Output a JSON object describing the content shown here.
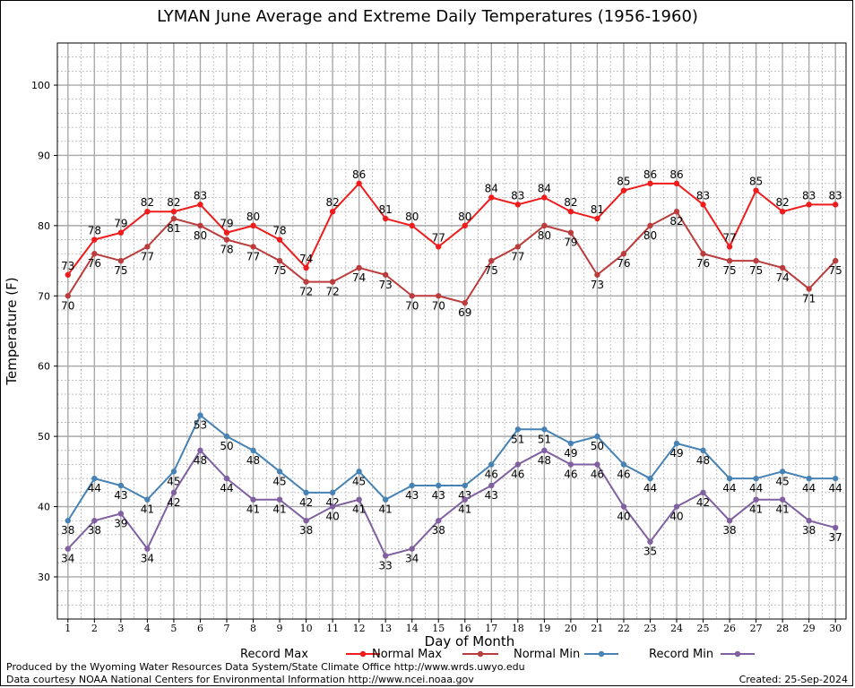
{
  "chart_data": {
    "type": "line",
    "title": "LYMAN June Average and Extreme Daily Temperatures (1956-1960)",
    "xlabel": "Day of Month",
    "ylabel": "Temperature (F)",
    "xlim": [
      0.6,
      30.4
    ],
    "ylim": [
      24,
      106
    ],
    "x": [
      1,
      2,
      3,
      4,
      5,
      6,
      7,
      8,
      9,
      10,
      11,
      12,
      13,
      14,
      15,
      16,
      17,
      18,
      19,
      20,
      21,
      22,
      23,
      24,
      25,
      26,
      27,
      28,
      29,
      30
    ],
    "y_ticks": [
      30,
      40,
      50,
      60,
      70,
      80,
      90,
      100
    ],
    "grid": true,
    "legend_position": "bottom",
    "series": [
      {
        "name": "Record Max",
        "color": "#ee1c1c",
        "values": [
          73,
          78,
          79,
          82,
          82,
          83,
          79,
          80,
          78,
          74,
          82,
          86,
          81,
          80,
          77,
          80,
          84,
          83,
          84,
          82,
          81,
          85,
          86,
          86,
          83,
          77,
          85,
          82,
          83,
          83
        ]
      },
      {
        "name": "Normal Max",
        "color": "#bb3c3c",
        "values": [
          70,
          76,
          75,
          77,
          81,
          80,
          78,
          77,
          75,
          72,
          72,
          74,
          73,
          70,
          70,
          69,
          75,
          77,
          80,
          79,
          73,
          76,
          80,
          82,
          76,
          75,
          75,
          74,
          71,
          75
        ]
      },
      {
        "name": "Normal Min",
        "color": "#4682b4",
        "values": [
          38,
          44,
          43,
          41,
          45,
          53,
          50,
          48,
          45,
          42,
          42,
          45,
          41,
          43,
          43,
          43,
          46,
          51,
          51,
          49,
          50,
          46,
          44,
          49,
          48,
          44,
          44,
          45,
          44,
          44
        ]
      },
      {
        "name": "Record Min",
        "color": "#8060a0",
        "values": [
          34,
          38,
          39,
          34,
          42,
          48,
          44,
          41,
          41,
          38,
          40,
          41,
          33,
          34,
          38,
          41,
          43,
          46,
          48,
          46,
          46,
          40,
          35,
          40,
          42,
          38,
          41,
          41,
          38,
          37
        ]
      }
    ]
  },
  "footer": {
    "line1": "Produced by the Wyoming Water Resources Data System/State Climate Office http://www.wrds.uwyo.edu",
    "line2": "Data courtesy NOAA National Centers for Environmental Information http://www.ncei.noaa.gov",
    "created": "Created:  25-Sep-2024"
  }
}
